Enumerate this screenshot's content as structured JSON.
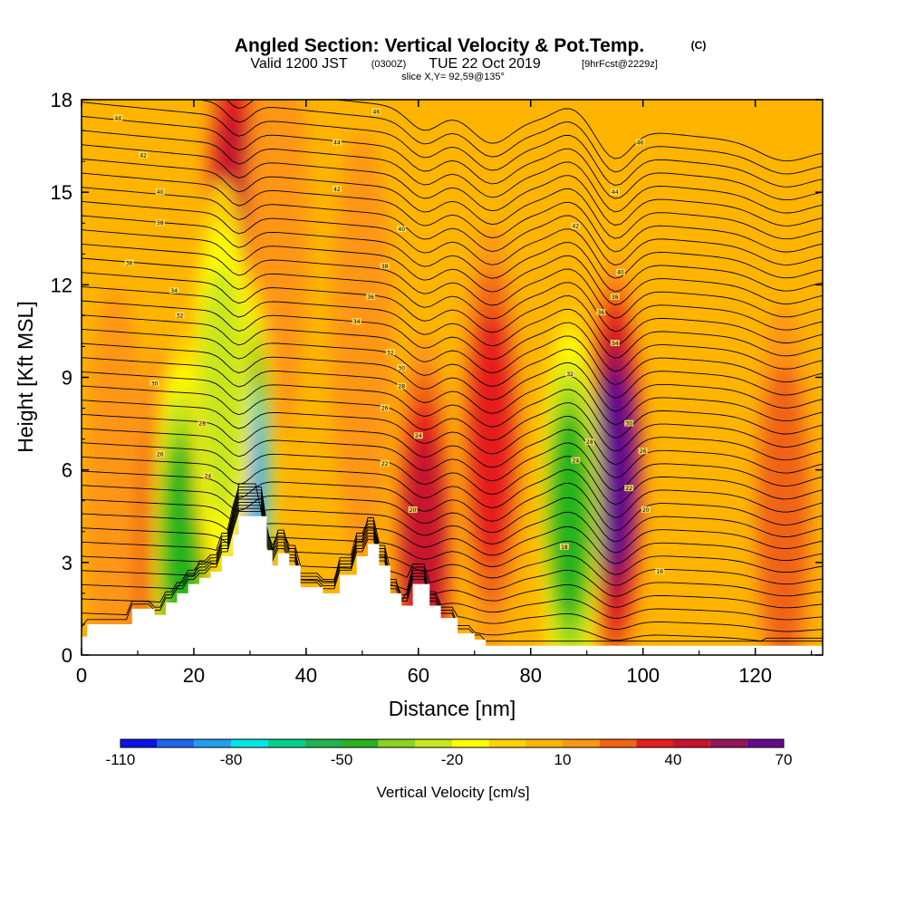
{
  "title": {
    "main": "Angled Section: Vertical Velocity & Pot.Temp.",
    "main_tag": "(C)",
    "valid_label": "Valid 1200 JST",
    "valid_z": "(0300Z)",
    "date": "TUE 22 Oct 2019",
    "fcst": "[9hrFcst@2229z]",
    "slice": "slice X,Y= 92,59@135°"
  },
  "chart_data": {
    "type": "heatmap",
    "xlabel": "Distance [nm]",
    "ylabel": "Height [Kft MSL]",
    "xlim": [
      0,
      132
    ],
    "ylim": [
      0,
      18
    ],
    "x_ticks": [
      "0",
      "20",
      "40",
      "60",
      "80",
      "100",
      "120"
    ],
    "y_ticks": [
      "0",
      "3",
      "6",
      "9",
      "12",
      "15",
      "18"
    ],
    "colorbar": {
      "label": "Vertical Velocity [cm/s]",
      "tick_labels": [
        "-110",
        "-80",
        "-50",
        "-20",
        "10",
        "40",
        "70"
      ],
      "levels": [
        -110,
        -100,
        -90,
        -80,
        -70,
        -60,
        -50,
        -40,
        -30,
        -20,
        -10,
        0,
        10,
        20,
        30,
        40,
        50,
        60,
        70
      ],
      "colors": [
        "#0a14e6",
        "#1e64f0",
        "#1ea0f0",
        "#00e6e6",
        "#00d28c",
        "#1eb450",
        "#28b41e",
        "#8cd21e",
        "#c8e61e",
        "#ffff00",
        "#ffd200",
        "#ffb400",
        "#ff9614",
        "#f06414",
        "#e61e1e",
        "#c8142d",
        "#96145a",
        "#640a8c"
      ],
      "background_level_cm_s": 5
    },
    "updrafts": [
      {
        "x": 27,
        "y": 14,
        "peak": 45
      },
      {
        "x": 35,
        "y": 14,
        "peak": 22
      },
      {
        "x": 61,
        "y": 3.5,
        "peak": 45
      },
      {
        "x": 73,
        "y": 7,
        "peak": 40
      },
      {
        "x": 95,
        "y": 6,
        "peak": 70
      },
      {
        "x": 125,
        "y": 4.5,
        "peak": 30
      },
      {
        "x": 6,
        "y": 5,
        "peak": 15
      },
      {
        "x": 14,
        "y": 3,
        "peak": 25
      },
      {
        "x": 50,
        "y": 10,
        "peak": 18
      }
    ],
    "downdrafts": [
      {
        "x": 18,
        "y": 3.5,
        "peak": -50
      },
      {
        "x": 29,
        "y": 5.5,
        "peak": -90
      },
      {
        "x": 87,
        "y": 4.5,
        "peak": -50
      },
      {
        "x": 25,
        "y": 8.5,
        "peak": -30
      }
    ],
    "terrain": [
      {
        "x": 0,
        "y": 0.6
      },
      {
        "x": 1,
        "y": 1
      },
      {
        "x": 5,
        "y": 1
      },
      {
        "x": 9,
        "y": 1.5
      },
      {
        "x": 13,
        "y": 1.3
      },
      {
        "x": 15,
        "y": 1.7
      },
      {
        "x": 17,
        "y": 2
      },
      {
        "x": 19,
        "y": 2.3
      },
      {
        "x": 21,
        "y": 2.5
      },
      {
        "x": 23,
        "y": 2.7
      },
      {
        "x": 25,
        "y": 3.2
      },
      {
        "x": 27,
        "y": 3.9
      },
      {
        "x": 28,
        "y": 4.5
      },
      {
        "x": 31,
        "y": 4.5
      },
      {
        "x": 33,
        "y": 3.4
      },
      {
        "x": 34,
        "y": 2.9
      },
      {
        "x": 35,
        "y": 3.3
      },
      {
        "x": 37,
        "y": 2.9
      },
      {
        "x": 39,
        "y": 2.2
      },
      {
        "x": 43,
        "y": 2
      },
      {
        "x": 46,
        "y": 2.6
      },
      {
        "x": 49,
        "y": 3.2
      },
      {
        "x": 51,
        "y": 3.6
      },
      {
        "x": 53,
        "y": 2.9
      },
      {
        "x": 55,
        "y": 2
      },
      {
        "x": 57,
        "y": 1.6
      },
      {
        "x": 59,
        "y": 2.3
      },
      {
        "x": 62,
        "y": 1.6
      },
      {
        "x": 64,
        "y": 1.2
      },
      {
        "x": 67,
        "y": 0.7
      },
      {
        "x": 70,
        "y": 0.5
      },
      {
        "x": 72,
        "y": 0.3
      },
      {
        "x": 132,
        "y": 0.3
      }
    ],
    "theta_contour_labels": [
      {
        "x": 6.5,
        "y": 17.4,
        "text": "44"
      },
      {
        "x": 11,
        "y": 16.2,
        "text": "42"
      },
      {
        "x": 14,
        "y": 15,
        "text": "40"
      },
      {
        "x": 14,
        "y": 14,
        "text": "38"
      },
      {
        "x": 8.5,
        "y": 12.7,
        "text": "36"
      },
      {
        "x": 16.5,
        "y": 11.8,
        "text": "34"
      },
      {
        "x": 17.5,
        "y": 11,
        "text": "32"
      },
      {
        "x": 13,
        "y": 8.8,
        "text": "30"
      },
      {
        "x": 21.5,
        "y": 7.5,
        "text": "28"
      },
      {
        "x": 14,
        "y": 6.5,
        "text": "26"
      },
      {
        "x": 22.5,
        "y": 5.8,
        "text": "24"
      },
      {
        "x": 52.5,
        "y": 17.6,
        "text": "46"
      },
      {
        "x": 45.5,
        "y": 16.6,
        "text": "44"
      },
      {
        "x": 45.5,
        "y": 15.1,
        "text": "42"
      },
      {
        "x": 57,
        "y": 13.8,
        "text": "40"
      },
      {
        "x": 54,
        "y": 12.6,
        "text": "38"
      },
      {
        "x": 51.5,
        "y": 11.6,
        "text": "36"
      },
      {
        "x": 49,
        "y": 10.8,
        "text": "34"
      },
      {
        "x": 55,
        "y": 9.8,
        "text": "32"
      },
      {
        "x": 57,
        "y": 9.3,
        "text": "30"
      },
      {
        "x": 57,
        "y": 8.7,
        "text": "28"
      },
      {
        "x": 54,
        "y": 8,
        "text": "26"
      },
      {
        "x": 60,
        "y": 7.1,
        "text": "24"
      },
      {
        "x": 54,
        "y": 6.2,
        "text": "22"
      },
      {
        "x": 59,
        "y": 4.7,
        "text": "20"
      },
      {
        "x": 99.5,
        "y": 16.6,
        "text": "46"
      },
      {
        "x": 95,
        "y": 15,
        "text": "44"
      },
      {
        "x": 88,
        "y": 13.9,
        "text": "42"
      },
      {
        "x": 96,
        "y": 12.4,
        "text": "40"
      },
      {
        "x": 95,
        "y": 11.6,
        "text": "38"
      },
      {
        "x": 92.5,
        "y": 11.1,
        "text": "36"
      },
      {
        "x": 95,
        "y": 10.1,
        "text": "34"
      },
      {
        "x": 87,
        "y": 9.1,
        "text": "32"
      },
      {
        "x": 97.5,
        "y": 7.5,
        "text": "30"
      },
      {
        "x": 90.5,
        "y": 6.9,
        "text": "28"
      },
      {
        "x": 100,
        "y": 6.6,
        "text": "26"
      },
      {
        "x": 88,
        "y": 6.3,
        "text": "24"
      },
      {
        "x": 97.5,
        "y": 5.4,
        "text": "22"
      },
      {
        "x": 100.5,
        "y": 4.7,
        "text": "20"
      },
      {
        "x": 86,
        "y": 3.5,
        "text": "18"
      },
      {
        "x": 103,
        "y": 2.7,
        "text": "16"
      }
    ]
  }
}
